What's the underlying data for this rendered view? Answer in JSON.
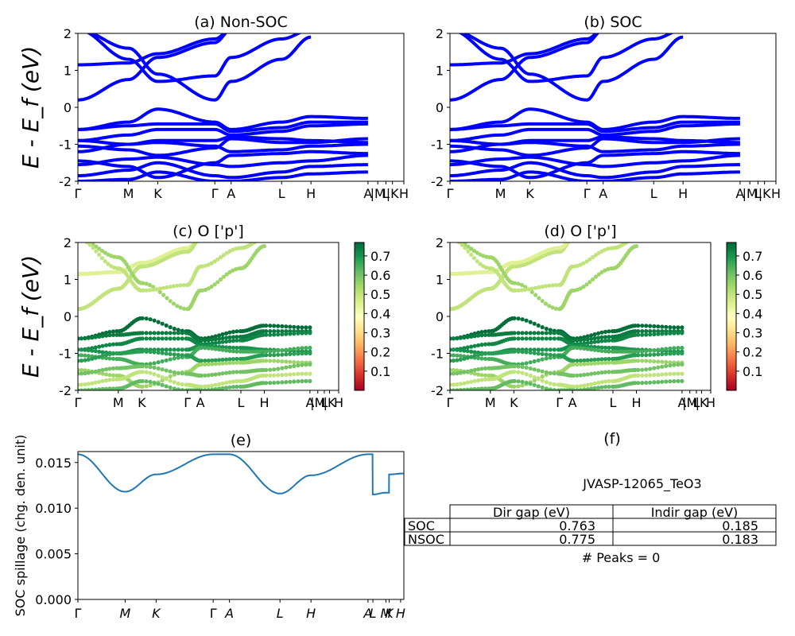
{
  "chart_data": [
    {
      "type": "line",
      "title": "(a) Non-SOC",
      "ylabel": "E - E_f (eV)",
      "ylim": [
        -2,
        2
      ],
      "yticks": [
        -2,
        -1,
        0,
        1,
        2
      ],
      "kpoints": [
        "Γ",
        "M",
        "K",
        "Γ",
        "A",
        "L",
        "H",
        "A",
        "M",
        "L",
        "K",
        "H"
      ],
      "kpoint_labels": [
        "Γ",
        "M",
        "K",
        "Γ",
        "A",
        "L",
        "H",
        "A",
        "|M",
        "L",
        "|K",
        "H"
      ],
      "color": "#0000ff",
      "series": [
        {
          "values": [
            1.15,
            1.2,
            1.45,
            1.85,
            2.1
          ]
        },
        {
          "values": [
            0.2,
            0.75,
            1.35,
            1.75,
            2.1
          ]
        },
        {
          "values": [
            2.1,
            1.6,
            0.9,
            0.2,
            0.7,
            1.3,
            1.9
          ]
        },
        {
          "values": [
            2.1,
            1.3,
            0.7,
            0.85,
            1.35,
            1.85,
            2.1
          ]
        },
        {
          "values": [
            -0.6,
            -0.4,
            -0.05,
            -0.4,
            -0.6,
            -0.4,
            -0.25,
            -0.3
          ]
        },
        {
          "values": [
            -0.6,
            -0.5,
            -0.45,
            -0.45,
            -0.65,
            -0.55,
            -0.4,
            -0.4
          ]
        },
        {
          "values": [
            -0.9,
            -0.75,
            -0.6,
            -0.6,
            -0.75,
            -0.65,
            -0.5,
            -0.45
          ]
        },
        {
          "values": [
            -0.9,
            -1.0,
            -0.9,
            -0.9,
            -0.8,
            -0.85,
            -0.9,
            -0.95
          ]
        },
        {
          "values": [
            -1.05,
            -1.15,
            -1.3,
            -1.1,
            -0.85,
            -0.95,
            -0.95,
            -0.85
          ]
        },
        {
          "values": [
            -1.2,
            -1.0,
            -0.95,
            -1.05,
            -1.2,
            -1.15,
            -1.05,
            -1.0
          ]
        },
        {
          "values": [
            -1.45,
            -1.6,
            -1.9,
            -1.5,
            -1.3,
            -1.25,
            -1.2,
            -1.25
          ]
        },
        {
          "values": [
            -1.55,
            -1.4,
            -1.35,
            -1.55,
            -1.6,
            -1.5,
            -1.45,
            -1.3
          ]
        },
        {
          "values": [
            -1.85,
            -1.7,
            -1.5,
            -1.85,
            -1.9,
            -1.75,
            -1.6,
            -1.55
          ]
        },
        {
          "values": [
            -2.0,
            -1.95,
            -1.75,
            -2.0,
            -2.0,
            -1.9,
            -1.8,
            -1.75
          ]
        }
      ]
    },
    {
      "type": "line",
      "title": "(b) SOC",
      "ylim": [
        -2,
        2
      ],
      "yticks": [
        -2,
        -1,
        0,
        1,
        2
      ],
      "kpoints": [
        "Γ",
        "M",
        "K",
        "Γ",
        "A",
        "L",
        "H",
        "A",
        "M",
        "L",
        "K",
        "H"
      ],
      "kpoint_labels": [
        "Γ",
        "M",
        "K",
        "Γ",
        "A",
        "L",
        "H",
        "A",
        "|M",
        "L",
        "|K",
        "H"
      ],
      "color": "#0000ff",
      "series": [
        {
          "values": [
            0.2,
            0.75,
            1.35,
            1.75,
            2.1
          ]
        },
        {
          "values": [
            1.15,
            1.2,
            1.45,
            1.85,
            2.1
          ]
        },
        {
          "values": [
            2.1,
            1.6,
            0.9,
            0.2,
            0.7,
            1.3,
            1.9
          ]
        },
        {
          "values": [
            2.1,
            1.3,
            0.7,
            0.85,
            1.35,
            1.85,
            2.1
          ]
        },
        {
          "values": [
            -0.6,
            -0.4,
            -0.05,
            -0.4,
            -0.6,
            -0.4,
            -0.25,
            -0.3
          ]
        },
        {
          "values": [
            -0.6,
            -0.5,
            -0.45,
            -0.45,
            -0.65,
            -0.55,
            -0.4,
            -0.4
          ]
        },
        {
          "values": [
            -0.9,
            -0.75,
            -0.6,
            -0.6,
            -0.75,
            -0.65,
            -0.5,
            -0.45
          ]
        },
        {
          "values": [
            -0.9,
            -1.0,
            -0.9,
            -0.9,
            -0.8,
            -0.85,
            -0.9,
            -0.95
          ]
        },
        {
          "values": [
            -1.05,
            -1.15,
            -1.3,
            -1.1,
            -0.85,
            -0.95,
            -0.95,
            -0.85
          ]
        },
        {
          "values": [
            -1.2,
            -1.0,
            -0.95,
            -1.05,
            -1.2,
            -1.15,
            -1.05,
            -1.0
          ]
        },
        {
          "values": [
            -1.45,
            -1.6,
            -1.9,
            -1.5,
            -1.3,
            -1.25,
            -1.2,
            -1.25
          ]
        },
        {
          "values": [
            -1.55,
            -1.4,
            -1.35,
            -1.55,
            -1.6,
            -1.5,
            -1.45,
            -1.3
          ]
        },
        {
          "values": [
            -1.85,
            -1.7,
            -1.5,
            -1.85,
            -1.9,
            -1.75,
            -1.6,
            -1.55
          ]
        },
        {
          "values": [
            -2.0,
            -1.95,
            -1.75,
            -2.0,
            -2.0,
            -1.9,
            -1.8,
            -1.75
          ]
        }
      ]
    },
    {
      "type": "scatter",
      "title": "(c)  O ['p']",
      "ylabel": "E - E_f (eV)",
      "ylim": [
        -2,
        2
      ],
      "yticks": [
        -2,
        -1,
        0,
        1,
        2
      ],
      "kpoints": [
        "Γ",
        "M",
        "K",
        "Γ",
        "A",
        "L",
        "H",
        "A",
        "M",
        "L",
        "K",
        "H"
      ],
      "kpoint_labels": [
        "Γ",
        "M",
        "K",
        "Γ",
        "A",
        "L",
        "H",
        "A",
        "|M",
        "L",
        "|K",
        "H"
      ],
      "colorbar": {
        "cmap": "RdYlGn",
        "range": [
          0,
          0.77
        ],
        "ticks": [
          "0.1",
          "0.2",
          "0.3",
          "0.4",
          "0.5",
          "0.6",
          "0.7"
        ]
      },
      "series": [
        {
          "values": [
            1.15,
            1.2,
            1.45,
            1.85,
            2.1
          ],
          "weight": 0.45
        },
        {
          "values": [
            0.2,
            0.75,
            1.35,
            1.75,
            2.1
          ],
          "weight": 0.5
        },
        {
          "values": [
            2.1,
            1.6,
            0.9,
            0.2,
            0.7,
            1.3,
            1.9
          ],
          "weight": 0.55
        },
        {
          "values": [
            2.1,
            1.3,
            0.7,
            0.85,
            1.35,
            1.85,
            2.1
          ],
          "weight": 0.5
        },
        {
          "values": [
            -0.6,
            -0.4,
            -0.05,
            -0.4,
            -0.6,
            -0.4,
            -0.25,
            -0.3
          ],
          "weight": 0.76
        },
        {
          "values": [
            -0.6,
            -0.5,
            -0.45,
            -0.45,
            -0.65,
            -0.55,
            -0.4,
            -0.4
          ],
          "weight": 0.74
        },
        {
          "values": [
            -0.9,
            -0.75,
            -0.6,
            -0.6,
            -0.75,
            -0.65,
            -0.5,
            -0.45
          ],
          "weight": 0.72
        },
        {
          "values": [
            -0.9,
            -1.0,
            -0.9,
            -0.9,
            -0.8,
            -0.85,
            -0.9,
            -0.95
          ],
          "weight": 0.7
        },
        {
          "values": [
            -1.05,
            -1.15,
            -1.3,
            -1.1,
            -0.85,
            -0.95,
            -0.95,
            -0.85
          ],
          "weight": 0.65
        },
        {
          "values": [
            -1.2,
            -1.0,
            -0.95,
            -1.05,
            -1.2,
            -1.15,
            -1.05,
            -1.0
          ],
          "weight": 0.68
        },
        {
          "values": [
            -1.45,
            -1.6,
            -1.9,
            -1.5,
            -1.3,
            -1.25,
            -1.2,
            -1.25
          ],
          "weight": 0.55
        },
        {
          "values": [
            -1.55,
            -1.4,
            -1.35,
            -1.55,
            -1.6,
            -1.5,
            -1.45,
            -1.3
          ],
          "weight": 0.6
        },
        {
          "values": [
            -1.85,
            -1.7,
            -1.5,
            -1.85,
            -1.9,
            -1.75,
            -1.6,
            -1.55
          ],
          "weight": 0.5
        },
        {
          "values": [
            -2.0,
            -1.95,
            -1.75,
            -2.0,
            -2.0,
            -1.9,
            -1.8,
            -1.75
          ],
          "weight": 0.62
        }
      ]
    },
    {
      "type": "scatter",
      "title": "(d) O ['p']",
      "ylim": [
        -2,
        2
      ],
      "yticks": [
        -2,
        -1,
        0,
        1,
        2
      ],
      "kpoints": [
        "Γ",
        "M",
        "K",
        "Γ",
        "A",
        "L",
        "H",
        "A",
        "M",
        "L",
        "K",
        "H"
      ],
      "kpoint_labels": [
        "Γ",
        "M",
        "K",
        "Γ",
        "A",
        "L",
        "H",
        "A",
        "|M",
        "L",
        "|K",
        "H"
      ],
      "colorbar": {
        "cmap": "RdYlGn",
        "range": [
          0,
          0.77
        ],
        "ticks": [
          "0.1",
          "0.2",
          "0.3",
          "0.4",
          "0.5",
          "0.6",
          "0.7"
        ]
      },
      "series": [
        {
          "values": [
            0.2,
            0.75,
            1.35,
            1.75,
            2.1
          ],
          "weight": 0.5
        },
        {
          "values": [
            1.15,
            1.2,
            1.45,
            1.85,
            2.1
          ],
          "weight": 0.45
        },
        {
          "values": [
            2.1,
            1.6,
            0.9,
            0.2,
            0.7,
            1.3,
            1.9
          ],
          "weight": 0.55
        },
        {
          "values": [
            2.1,
            1.3,
            0.7,
            0.85,
            1.35,
            1.85,
            2.1
          ],
          "weight": 0.5
        },
        {
          "values": [
            -0.6,
            -0.4,
            -0.05,
            -0.4,
            -0.6,
            -0.4,
            -0.25,
            -0.3
          ],
          "weight": 0.76
        },
        {
          "values": [
            -0.6,
            -0.5,
            -0.45,
            -0.45,
            -0.65,
            -0.55,
            -0.4,
            -0.4
          ],
          "weight": 0.74
        },
        {
          "values": [
            -0.9,
            -0.75,
            -0.6,
            -0.6,
            -0.75,
            -0.65,
            -0.5,
            -0.45
          ],
          "weight": 0.72
        },
        {
          "values": [
            -0.9,
            -1.0,
            -0.9,
            -0.9,
            -0.8,
            -0.85,
            -0.9,
            -0.95
          ],
          "weight": 0.7
        },
        {
          "values": [
            -1.05,
            -1.15,
            -1.3,
            -1.1,
            -0.85,
            -0.95,
            -0.95,
            -0.85
          ],
          "weight": 0.65
        },
        {
          "values": [
            -1.2,
            -1.0,
            -0.95,
            -1.05,
            -1.2,
            -1.15,
            -1.05,
            -1.0
          ],
          "weight": 0.68
        },
        {
          "values": [
            -1.45,
            -1.6,
            -1.9,
            -1.5,
            -1.3,
            -1.25,
            -1.2,
            -1.25
          ],
          "weight": 0.55
        },
        {
          "values": [
            -1.55,
            -1.4,
            -1.35,
            -1.55,
            -1.6,
            -1.5,
            -1.45,
            -1.3
          ],
          "weight": 0.6
        },
        {
          "values": [
            -1.85,
            -1.7,
            -1.5,
            -1.85,
            -1.9,
            -1.75,
            -1.6,
            -1.55
          ],
          "weight": 0.5
        },
        {
          "values": [
            -2.0,
            -1.95,
            -1.75,
            -2.0,
            -2.0,
            -1.9,
            -1.8,
            -1.75
          ],
          "weight": 0.62
        }
      ]
    },
    {
      "type": "line",
      "title": "(e)",
      "ylabel": "SOC spillage (chg. den. unit)",
      "ylim": [
        0,
        0.016
      ],
      "yticks": [
        "0.000",
        "0.005",
        "0.010",
        "0.015"
      ],
      "kpoint_labels": [
        "Γ",
        "M",
        "K",
        "Γ",
        "A",
        "L",
        "H",
        "A",
        "L",
        "M",
        "K",
        "H"
      ],
      "color": "#1f77b4",
      "x": [
        "Γ",
        "M",
        "K",
        "Γ",
        "A",
        "L",
        "H",
        "A",
        "L",
        "M",
        "K",
        "H"
      ],
      "values": [
        0.0159,
        0.0118,
        0.0137,
        0.0159,
        0.0159,
        0.0116,
        0.0136,
        0.0159,
        0.0115,
        0.0117,
        0.0137,
        0.0138
      ]
    },
    {
      "type": "table",
      "title": "(f)",
      "caption": "JVASP-12065_TeO3",
      "columns": [
        "Dir gap (eV)",
        "Indir gap (eV)"
      ],
      "rows": [
        {
          "label": "SOC",
          "values": [
            "0.763",
            "0.185"
          ]
        },
        {
          "label": "NSOC",
          "values": [
            "0.775",
            "0.183"
          ]
        }
      ],
      "footer": "# Peaks = 0"
    }
  ]
}
